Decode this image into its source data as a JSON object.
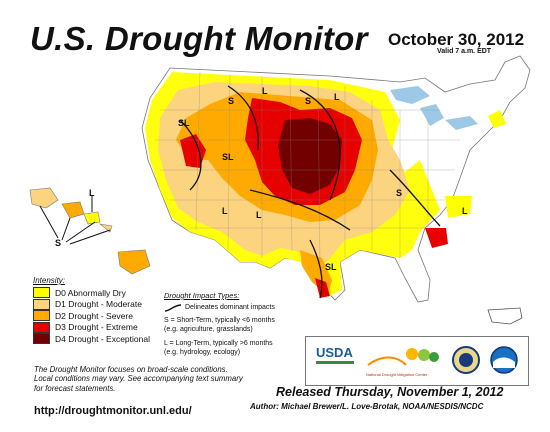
{
  "header": {
    "title": "U.S. Drought Monitor",
    "date": "October 30, 2012",
    "valid": "Valid 7 a.m. EDT"
  },
  "legend": {
    "title": "Intensity:",
    "items": [
      {
        "label": "D0 Abnormally Dry",
        "color": "#ffff00"
      },
      {
        "label": "D1 Drought - Moderate",
        "color": "#fcd37f"
      },
      {
        "label": "D2 Drought - Severe",
        "color": "#ffaa00"
      },
      {
        "label": "D3 Drought - Extreme",
        "color": "#e60000"
      },
      {
        "label": "D4 Drought - Exceptional",
        "color": "#730000"
      }
    ]
  },
  "impact": {
    "title": "Drought Impact Types:",
    "delineates": "Delineates dominant impacts",
    "short_term": "S = Short-Term, typically <6 months",
    "short_term_eg": "(e.g. agriculture, grasslands)",
    "long_term": "L = Long-Term, typically >6 months",
    "long_term_eg": "(e.g. hydrology, ecology)"
  },
  "footer": {
    "note_line1": "The Drought Monitor focuses on broad-scale conditions.",
    "note_line2": "Local conditions may vary. See accompanying text summary",
    "note_line3": "for forecast statements.",
    "url": "http://droughtmonitor.unl.edu/",
    "released": "Released Thursday, November 1, 2012",
    "author": "Author: Michael Brewer/L. Love-Brotak, NOAA/NESDIS/NCDC"
  },
  "logos": {
    "usda": "USDA",
    "nidmc": "National Drought Mitigation Center"
  },
  "map_labels": {
    "S": "S",
    "L": "L",
    "SL": "SL"
  }
}
